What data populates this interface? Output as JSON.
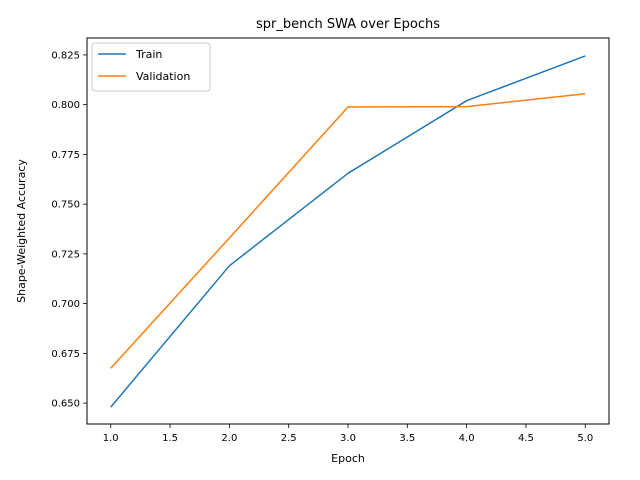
{
  "chart_data": {
    "type": "line",
    "title": "spr_bench SWA over Epochs",
    "xlabel": "Epoch",
    "ylabel": "Shape-Weighted Accuracy",
    "x": [
      1,
      2,
      3,
      4,
      5
    ],
    "xlim": [
      0.8,
      5.2
    ],
    "ylim": [
      0.6395,
      0.8335
    ],
    "xticks": [
      "1.0",
      "1.5",
      "2.0",
      "2.5",
      "3.0",
      "3.5",
      "4.0",
      "4.5",
      "5.0"
    ],
    "xtick_values": [
      1.0,
      1.5,
      2.0,
      2.5,
      3.0,
      3.5,
      4.0,
      4.5,
      5.0
    ],
    "yticks": [
      "0.650",
      "0.675",
      "0.700",
      "0.725",
      "0.750",
      "0.775",
      "0.800",
      "0.825"
    ],
    "ytick_values": [
      0.65,
      0.675,
      0.7,
      0.725,
      0.75,
      0.775,
      0.8,
      0.825
    ],
    "grid": false,
    "legend_position": "upper-left",
    "series": [
      {
        "name": "Train",
        "color": "#1f77b4",
        "values": [
          0.648,
          0.719,
          0.7655,
          0.802,
          0.8245
        ]
      },
      {
        "name": "Validation",
        "color": "#ff7f0e",
        "values": [
          0.6675,
          0.733,
          0.7988,
          0.799,
          0.8055
        ]
      }
    ]
  }
}
